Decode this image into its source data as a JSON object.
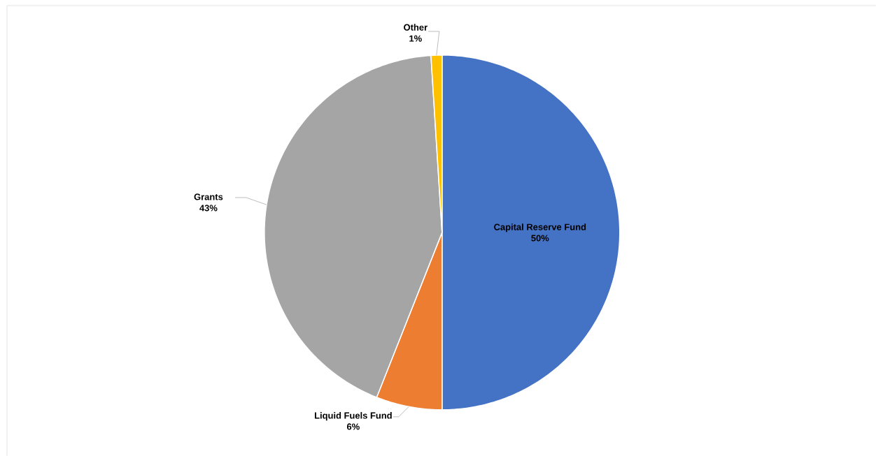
{
  "chart_data": {
    "type": "pie",
    "categories": [
      "Capital Reserve Fund",
      "Liquid Fuels Fund",
      "Grants",
      "Other"
    ],
    "values": [
      50,
      6,
      43,
      1
    ],
    "colors": [
      "#4472c4",
      "#ed7d31",
      "#a5a5a5",
      "#ffc000"
    ],
    "value_labels": [
      "50%",
      "6%",
      "43%",
      "1%"
    ]
  }
}
